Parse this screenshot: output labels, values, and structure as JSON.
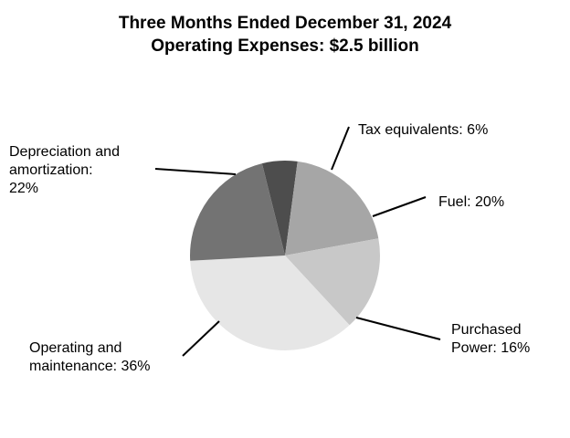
{
  "chart_data": {
    "type": "pie",
    "title": "Three Months Ended  December 31, 2024",
    "subtitle": "Operating Expenses: $2.5 billion",
    "slices": [
      {
        "label_lines": [
          "Tax equivalents: 6%"
        ],
        "value": 6,
        "color": "#4d4d4d"
      },
      {
        "label_lines": [
          "Fuel: 20%"
        ],
        "value": 20,
        "color": "#a6a6a6"
      },
      {
        "label_lines": [
          "Purchased",
          "Power: 16%"
        ],
        "value": 16,
        "color": "#c8c8c8"
      },
      {
        "label_lines": [
          "Operating and",
          "maintenance: 36%"
        ],
        "value": 36,
        "color": "#e6e6e6"
      },
      {
        "label_lines": [
          "Depreciation and",
          "amortization:",
          "22%"
        ],
        "value": 22,
        "color": "#737373"
      }
    ]
  }
}
